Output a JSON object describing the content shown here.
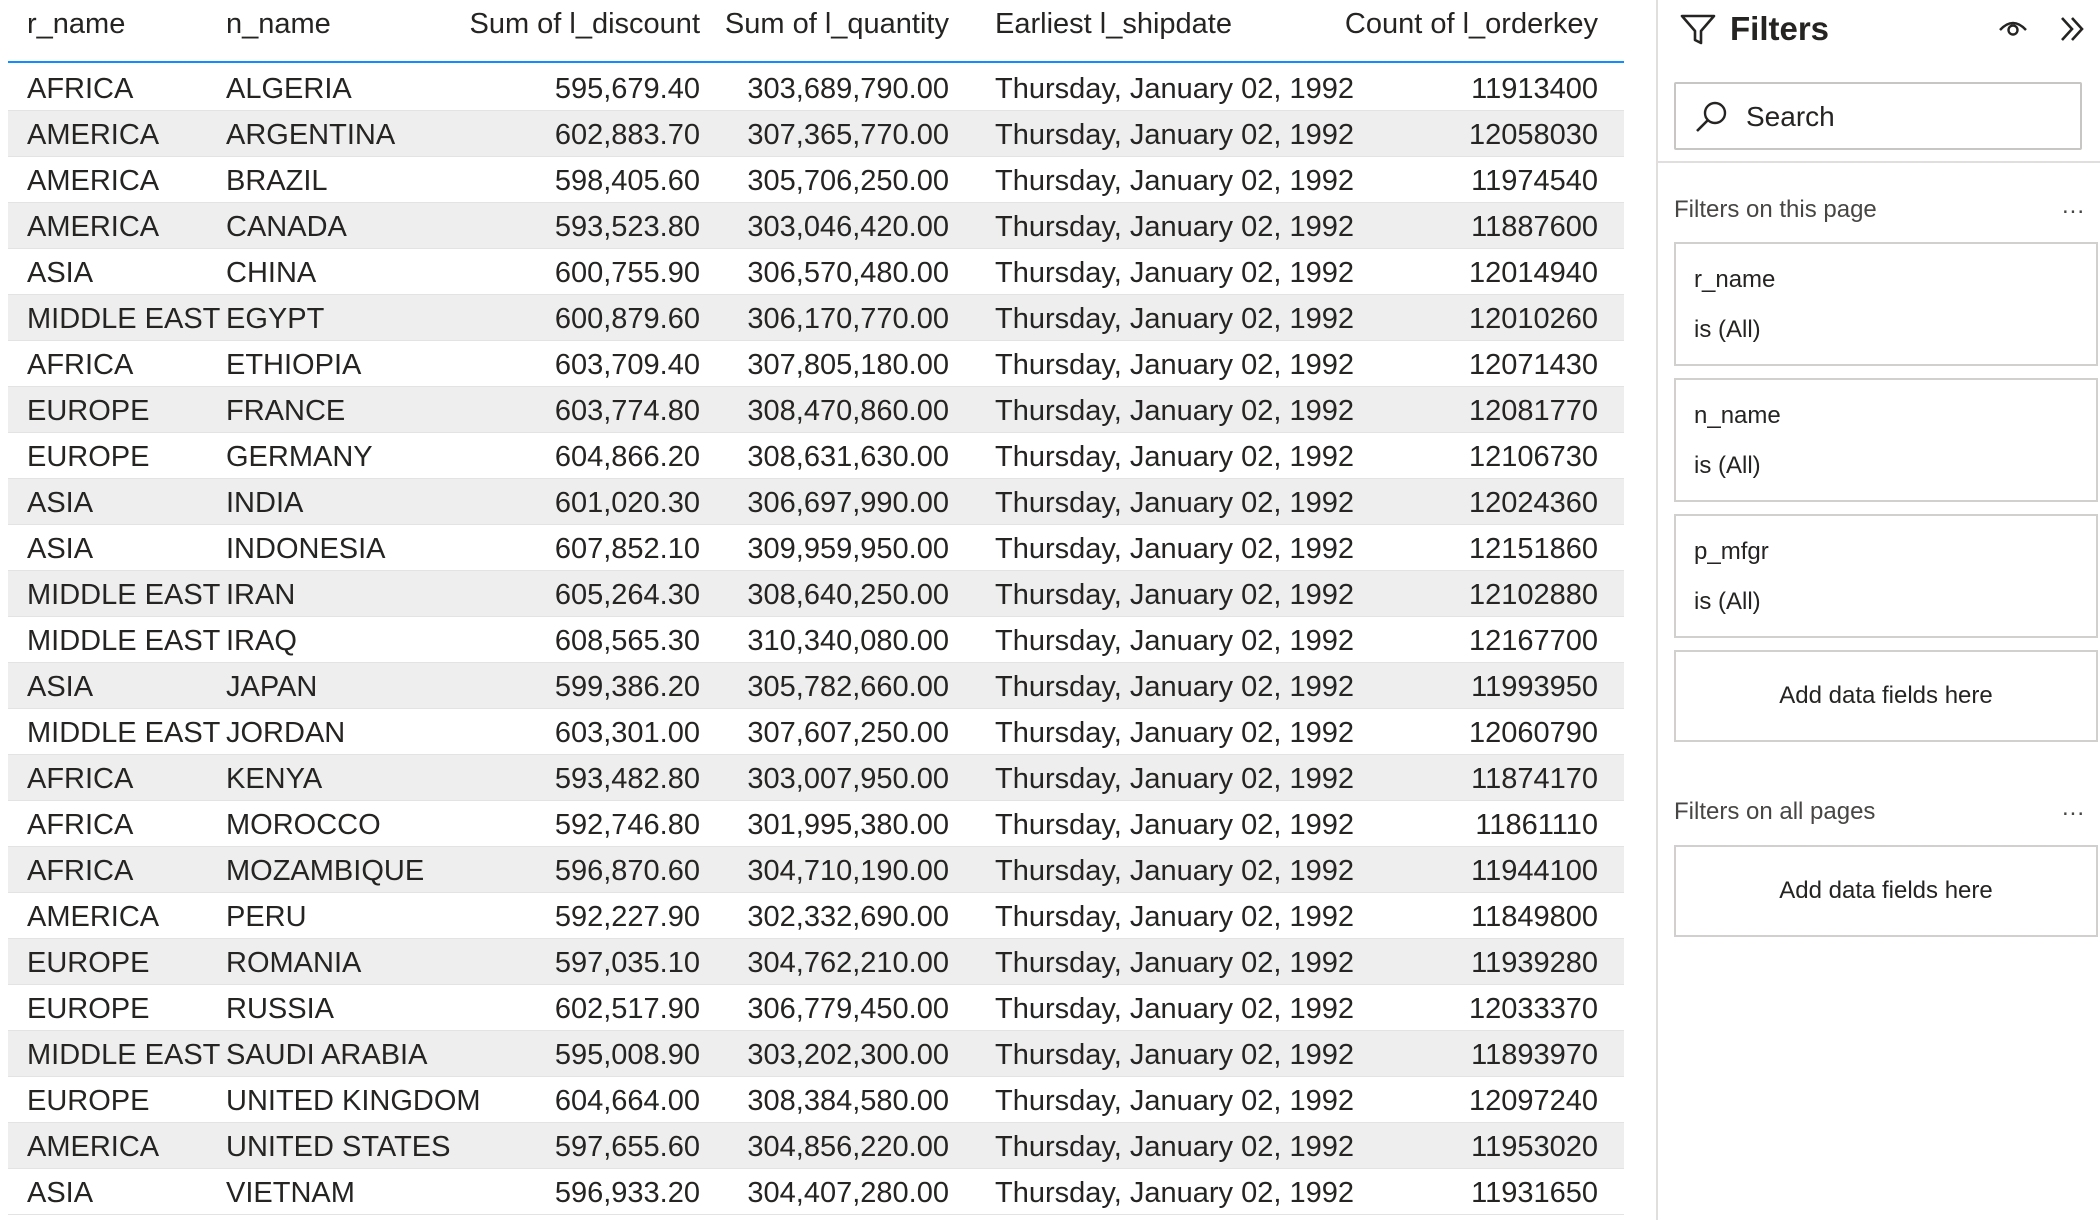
{
  "table": {
    "headers": {
      "r_name": "r_name",
      "n_name": "n_name",
      "discount": "Sum of l_discount",
      "quantity": "Sum of l_quantity",
      "shipdate": "Earliest l_shipdate",
      "orderkey": "Count of l_orderkey"
    },
    "rows": [
      {
        "r_name": "AFRICA",
        "n_name": "ALGERIA",
        "discount": "595,679.40",
        "quantity": "303,689,790.00",
        "shipdate": "Thursday, January 02, 1992",
        "orderkey": "11913400"
      },
      {
        "r_name": "AMERICA",
        "n_name": "ARGENTINA",
        "discount": "602,883.70",
        "quantity": "307,365,770.00",
        "shipdate": "Thursday, January 02, 1992",
        "orderkey": "12058030"
      },
      {
        "r_name": "AMERICA",
        "n_name": "BRAZIL",
        "discount": "598,405.60",
        "quantity": "305,706,250.00",
        "shipdate": "Thursday, January 02, 1992",
        "orderkey": "11974540"
      },
      {
        "r_name": "AMERICA",
        "n_name": "CANADA",
        "discount": "593,523.80",
        "quantity": "303,046,420.00",
        "shipdate": "Thursday, January 02, 1992",
        "orderkey": "11887600"
      },
      {
        "r_name": "ASIA",
        "n_name": "CHINA",
        "discount": "600,755.90",
        "quantity": "306,570,480.00",
        "shipdate": "Thursday, January 02, 1992",
        "orderkey": "12014940"
      },
      {
        "r_name": "MIDDLE EAST",
        "n_name": "EGYPT",
        "discount": "600,879.60",
        "quantity": "306,170,770.00",
        "shipdate": "Thursday, January 02, 1992",
        "orderkey": "12010260"
      },
      {
        "r_name": "AFRICA",
        "n_name": "ETHIOPIA",
        "discount": "603,709.40",
        "quantity": "307,805,180.00",
        "shipdate": "Thursday, January 02, 1992",
        "orderkey": "12071430"
      },
      {
        "r_name": "EUROPE",
        "n_name": "FRANCE",
        "discount": "603,774.80",
        "quantity": "308,470,860.00",
        "shipdate": "Thursday, January 02, 1992",
        "orderkey": "12081770"
      },
      {
        "r_name": "EUROPE",
        "n_name": "GERMANY",
        "discount": "604,866.20",
        "quantity": "308,631,630.00",
        "shipdate": "Thursday, January 02, 1992",
        "orderkey": "12106730"
      },
      {
        "r_name": "ASIA",
        "n_name": "INDIA",
        "discount": "601,020.30",
        "quantity": "306,697,990.00",
        "shipdate": "Thursday, January 02, 1992",
        "orderkey": "12024360"
      },
      {
        "r_name": "ASIA",
        "n_name": "INDONESIA",
        "discount": "607,852.10",
        "quantity": "309,959,950.00",
        "shipdate": "Thursday, January 02, 1992",
        "orderkey": "12151860"
      },
      {
        "r_name": "MIDDLE EAST",
        "n_name": "IRAN",
        "discount": "605,264.30",
        "quantity": "308,640,250.00",
        "shipdate": "Thursday, January 02, 1992",
        "orderkey": "12102880"
      },
      {
        "r_name": "MIDDLE EAST",
        "n_name": "IRAQ",
        "discount": "608,565.30",
        "quantity": "310,340,080.00",
        "shipdate": "Thursday, January 02, 1992",
        "orderkey": "12167700"
      },
      {
        "r_name": "ASIA",
        "n_name": "JAPAN",
        "discount": "599,386.20",
        "quantity": "305,782,660.00",
        "shipdate": "Thursday, January 02, 1992",
        "orderkey": "11993950"
      },
      {
        "r_name": "MIDDLE EAST",
        "n_name": "JORDAN",
        "discount": "603,301.00",
        "quantity": "307,607,250.00",
        "shipdate": "Thursday, January 02, 1992",
        "orderkey": "12060790"
      },
      {
        "r_name": "AFRICA",
        "n_name": "KENYA",
        "discount": "593,482.80",
        "quantity": "303,007,950.00",
        "shipdate": "Thursday, January 02, 1992",
        "orderkey": "11874170"
      },
      {
        "r_name": "AFRICA",
        "n_name": "MOROCCO",
        "discount": "592,746.80",
        "quantity": "301,995,380.00",
        "shipdate": "Thursday, January 02, 1992",
        "orderkey": "11861110"
      },
      {
        "r_name": "AFRICA",
        "n_name": "MOZAMBIQUE",
        "discount": "596,870.60",
        "quantity": "304,710,190.00",
        "shipdate": "Thursday, January 02, 1992",
        "orderkey": "11944100"
      },
      {
        "r_name": "AMERICA",
        "n_name": "PERU",
        "discount": "592,227.90",
        "quantity": "302,332,690.00",
        "shipdate": "Thursday, January 02, 1992",
        "orderkey": "11849800"
      },
      {
        "r_name": "EUROPE",
        "n_name": "ROMANIA",
        "discount": "597,035.10",
        "quantity": "304,762,210.00",
        "shipdate": "Thursday, January 02, 1992",
        "orderkey": "11939280"
      },
      {
        "r_name": "EUROPE",
        "n_name": "RUSSIA",
        "discount": "602,517.90",
        "quantity": "306,779,450.00",
        "shipdate": "Thursday, January 02, 1992",
        "orderkey": "12033370"
      },
      {
        "r_name": "MIDDLE EAST",
        "n_name": "SAUDI ARABIA",
        "discount": "595,008.90",
        "quantity": "303,202,300.00",
        "shipdate": "Thursday, January 02, 1992",
        "orderkey": "11893970"
      },
      {
        "r_name": "EUROPE",
        "n_name": "UNITED KINGDOM",
        "discount": "604,664.00",
        "quantity": "308,384,580.00",
        "shipdate": "Thursday, January 02, 1992",
        "orderkey": "12097240"
      },
      {
        "r_name": "AMERICA",
        "n_name": "UNITED STATES",
        "discount": "597,655.60",
        "quantity": "304,856,220.00",
        "shipdate": "Thursday, January 02, 1992",
        "orderkey": "11953020"
      },
      {
        "r_name": "ASIA",
        "n_name": "VIETNAM",
        "discount": "596,933.20",
        "quantity": "304,407,280.00",
        "shipdate": "Thursday, January 02, 1992",
        "orderkey": "11931650"
      }
    ]
  },
  "filters_pane": {
    "title": "Filters",
    "search_placeholder": "Search",
    "page_section_label": "Filters on this page",
    "all_pages_section_label": "Filters on all pages",
    "more_label": "...",
    "page_filters": [
      {
        "name": "r_name",
        "state": "is (All)"
      },
      {
        "name": "n_name",
        "state": "is (All)"
      },
      {
        "name": "p_mfgr",
        "state": "is (All)"
      }
    ],
    "add_fields_label": "Add data fields here"
  },
  "colors": {
    "header_accent": "#118DFF",
    "row_stripe": "#eeeeee",
    "text": "#252423"
  },
  "icons": {
    "filter": "funnel-icon",
    "visibility": "eye-icon",
    "collapse": "double-chevron-right-icon",
    "search": "search-icon"
  }
}
